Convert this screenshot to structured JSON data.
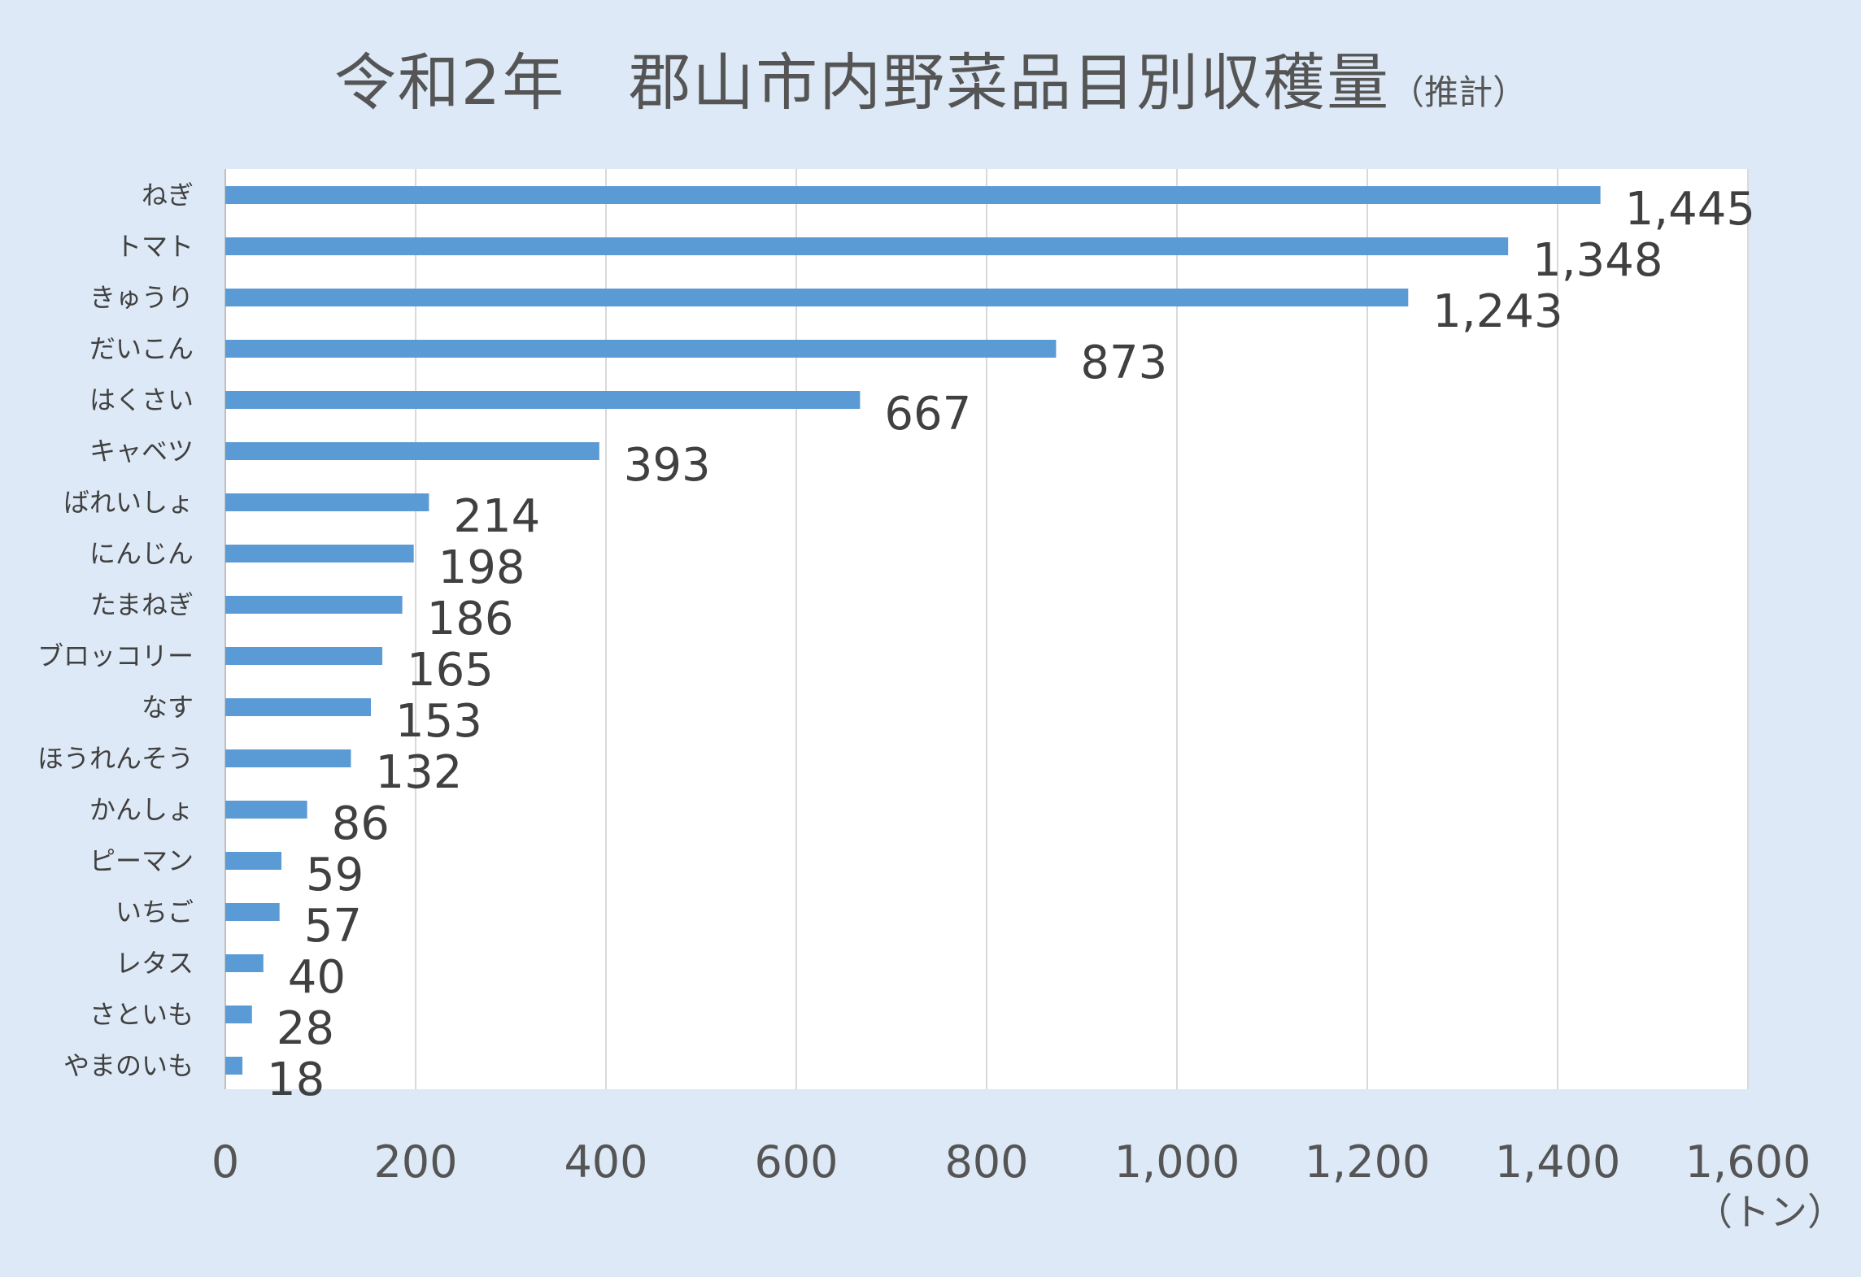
{
  "chart_data": {
    "type": "bar",
    "orientation": "horizontal",
    "title": "令和2年　郡山市内野菜品目別収穫量",
    "subtitle": "（推計）",
    "xlabel": "（トン）",
    "ylabel": "",
    "xlim": [
      0,
      1600
    ],
    "x_ticks": [
      "0",
      "200",
      "400",
      "600",
      "800",
      "1,000",
      "1,200",
      "1,400",
      "1,600"
    ],
    "grid": "vertical",
    "legend": "none",
    "bar_color": "#5b9bd5",
    "categories": [
      "ねぎ",
      "トマト",
      "きゅうり",
      "だいこん",
      "はくさい",
      "キャベツ",
      "ばれいしょ",
      "にんじん",
      "たまねぎ",
      "ブロッコリー",
      "なす",
      "ほうれんそう",
      "かんしょ",
      "ピーマン",
      "いちご",
      "レタス",
      "さといも",
      "やまのいも"
    ],
    "values": [
      1445,
      1348,
      1243,
      873,
      667,
      393,
      214,
      198,
      186,
      165,
      153,
      132,
      86,
      59,
      57,
      40,
      28,
      18
    ],
    "data_labels": [
      "1,445",
      "1,348",
      "1,243",
      "873",
      "667",
      "393",
      "214",
      "198",
      "186",
      "165",
      "153",
      "132",
      "86",
      "59",
      "57",
      "40",
      "28",
      "18"
    ]
  }
}
